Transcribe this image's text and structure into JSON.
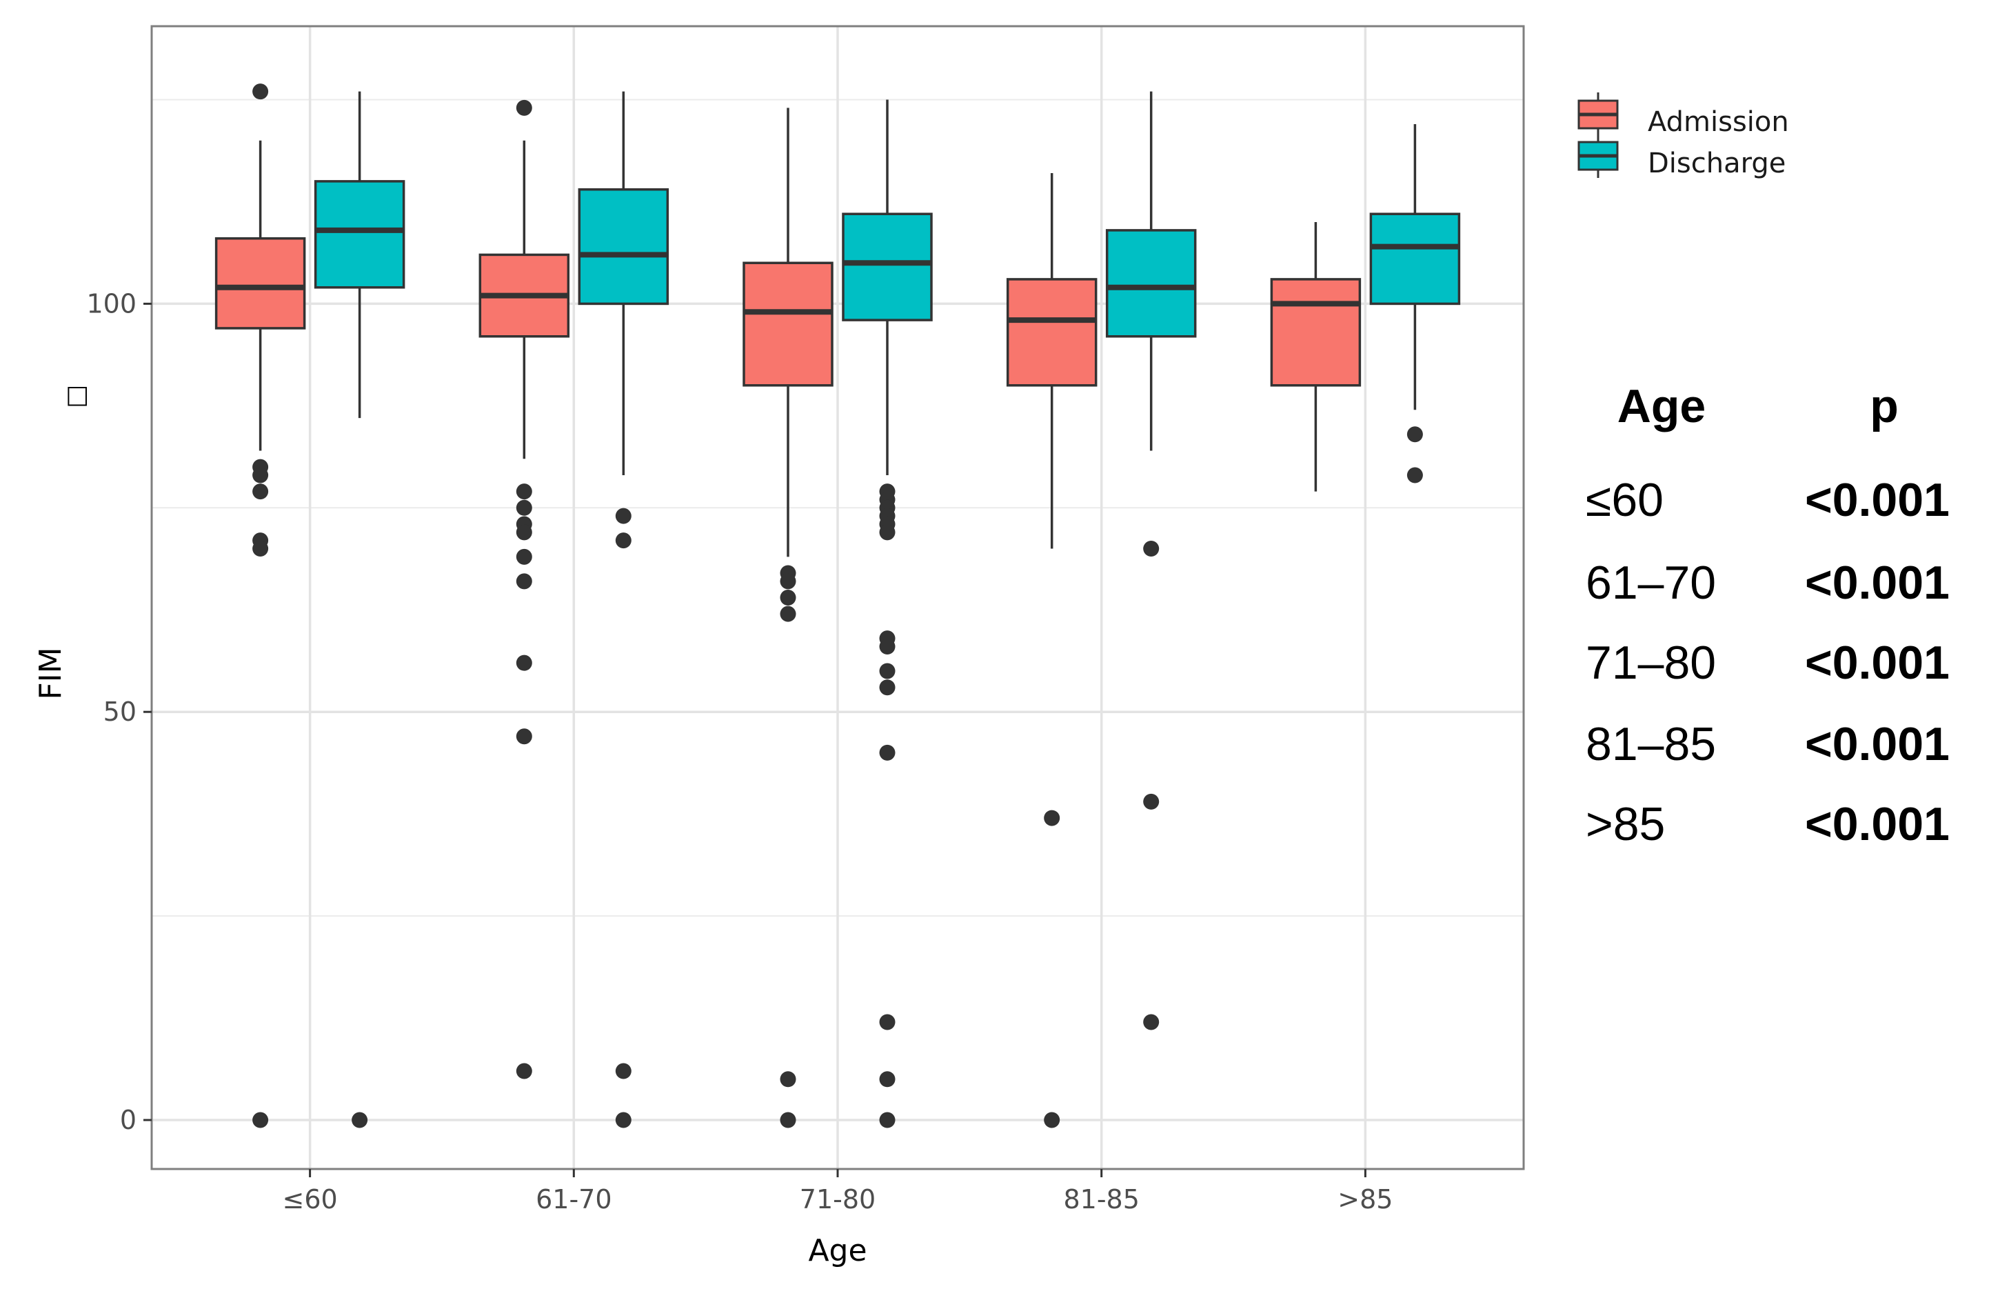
{
  "chart_data": {
    "type": "boxplot",
    "title": "",
    "xlabel": "Age",
    "ylabel": "FIM",
    "ylabel_marker": "□",
    "ylim": [
      -6,
      134
    ],
    "yticks": [
      0,
      50,
      100
    ],
    "ytick_labels": [
      "0",
      "50",
      "100"
    ],
    "grid": true,
    "categories": [
      "≤60",
      "61-70",
      "71-80",
      "81-85",
      ">85"
    ],
    "series": [
      {
        "name": "Admission",
        "color": "#F8766D",
        "boxes": [
          {
            "q1": 97,
            "median": 102,
            "q3": 108,
            "whisker_low": 82,
            "whisker_high": 120,
            "outliers": [
              126,
              80,
              79,
              77,
              71,
              70,
              0
            ]
          },
          {
            "q1": 96,
            "median": 101,
            "q3": 106,
            "whisker_low": 81,
            "whisker_high": 120,
            "outliers": [
              124,
              77,
              75,
              73,
              72,
              69,
              66,
              56,
              47,
              6
            ]
          },
          {
            "q1": 90,
            "median": 99,
            "q3": 105,
            "whisker_low": 69,
            "whisker_high": 124,
            "outliers": [
              67,
              66,
              64,
              62,
              5,
              0
            ]
          },
          {
            "q1": 90,
            "median": 98,
            "q3": 103,
            "whisker_low": 70,
            "whisker_high": 116,
            "outliers": [
              37,
              0
            ]
          },
          {
            "q1": 90,
            "median": 100,
            "q3": 103,
            "whisker_low": 77,
            "whisker_high": 110,
            "outliers": []
          }
        ]
      },
      {
        "name": "Discharge",
        "color": "#00BFC4",
        "boxes": [
          {
            "q1": 102,
            "median": 109,
            "q3": 115,
            "whisker_low": 86,
            "whisker_high": 126,
            "outliers": [
              0
            ]
          },
          {
            "q1": 100,
            "median": 106,
            "q3": 114,
            "whisker_low": 79,
            "whisker_high": 126,
            "outliers": [
              74,
              71,
              6,
              0
            ]
          },
          {
            "q1": 98,
            "median": 105,
            "q3": 111,
            "whisker_low": 79,
            "whisker_high": 125,
            "outliers": [
              77,
              76,
              75,
              74,
              73,
              72,
              59,
              58,
              55,
              53,
              45,
              12,
              5,
              0
            ]
          },
          {
            "q1": 96,
            "median": 102,
            "q3": 109,
            "whisker_low": 82,
            "whisker_high": 126,
            "outliers": [
              70,
              39,
              12
            ]
          },
          {
            "q1": 100,
            "median": 107,
            "q3": 111,
            "whisker_low": 87,
            "whisker_high": 122,
            "outliers": [
              84,
              79
            ]
          }
        ]
      }
    ],
    "legend": {
      "placement": "top-right",
      "entries": [
        "Admission",
        "Discharge"
      ]
    },
    "p_table": {
      "headers": [
        "Age",
        "p"
      ],
      "rows": [
        {
          "age": "≤60",
          "p": "<0.001"
        },
        {
          "age": "61–70",
          "p": "<0.001"
        },
        {
          "age": "71–80",
          "p": "<0.001"
        },
        {
          "age": "81–85",
          "p": "<0.001"
        },
        {
          "age": ">85",
          "p": "<0.001"
        }
      ]
    }
  }
}
